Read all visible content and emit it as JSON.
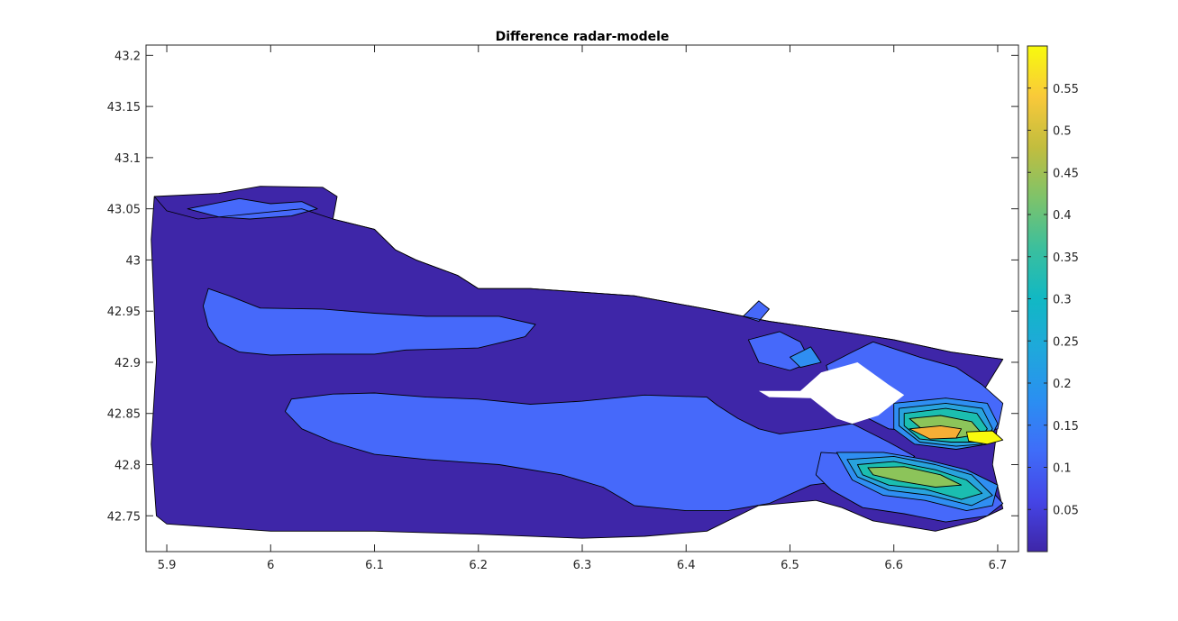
{
  "chart_data": {
    "type": "contour",
    "title": "Difference radar-modele",
    "xlabel": "",
    "ylabel": "",
    "xlim": [
      5.88,
      6.72
    ],
    "ylim": [
      42.715,
      43.21
    ],
    "xticks": [
      5.9,
      6.0,
      6.1,
      6.2,
      6.3,
      6.4,
      6.5,
      6.6,
      6.7
    ],
    "xtick_labels": [
      "5.9",
      "6",
      "6.1",
      "6.2",
      "6.3",
      "6.4",
      "6.5",
      "6.6",
      "6.7"
    ],
    "yticks": [
      42.75,
      42.8,
      42.85,
      42.9,
      42.95,
      43.0,
      43.05,
      43.1,
      43.15,
      43.2
    ],
    "ytick_labels": [
      "42.75",
      "42.8",
      "42.85",
      "42.9",
      "42.95",
      "43",
      "43.05",
      "43.1",
      "43.15",
      "43.2"
    ],
    "colorbar": {
      "colormap": "parula",
      "range": [
        0.0,
        0.6
      ],
      "ticks": [
        0.05,
        0.1,
        0.15,
        0.2,
        0.25,
        0.3,
        0.35,
        0.4,
        0.45,
        0.5,
        0.55
      ],
      "tick_labels": [
        "0.05",
        "0.1",
        "0.15",
        "0.2",
        "0.25",
        "0.3",
        "0.35",
        "0.4",
        "0.45",
        "0.5",
        "0.55"
      ]
    },
    "levels": [
      {
        "value": 0.025,
        "color": "#3e26a8"
      },
      {
        "value": 0.075,
        "color": "#4669fa"
      },
      {
        "value": 0.125,
        "color": "#2f8ef2"
      },
      {
        "value": 0.175,
        "color": "#28a3dd"
      },
      {
        "value": 0.225,
        "color": "#16b6cb"
      },
      {
        "value": 0.275,
        "color": "#1bbeb0"
      },
      {
        "value": 0.325,
        "color": "#55c281"
      },
      {
        "value": 0.375,
        "color": "#8cc45a"
      },
      {
        "value": 0.425,
        "color": "#c5bc3c"
      },
      {
        "value": 0.475,
        "color": "#f6ae36"
      },
      {
        "value": 0.525,
        "color": "#fbd432"
      },
      {
        "value": 0.575,
        "color": "#f8fa0d"
      }
    ],
    "regions": [
      {
        "level": 0.025,
        "points": [
          [
            5.888,
            43.062
          ],
          [
            5.95,
            43.065
          ],
          [
            5.99,
            43.072
          ],
          [
            6.05,
            43.071
          ],
          [
            6.064,
            43.062
          ],
          [
            6.06,
            43.04
          ],
          [
            6.1,
            43.03
          ],
          [
            6.12,
            43.01
          ],
          [
            6.14,
            43.0
          ],
          [
            6.18,
            42.985
          ],
          [
            6.2,
            42.972
          ],
          [
            6.25,
            42.972
          ],
          [
            6.35,
            42.965
          ],
          [
            6.42,
            42.952
          ],
          [
            6.48,
            42.94
          ],
          [
            6.55,
            42.93
          ],
          [
            6.6,
            42.922
          ],
          [
            6.655,
            42.91
          ],
          [
            6.705,
            42.903
          ],
          [
            6.685,
            42.87
          ],
          [
            6.7,
            42.84
          ],
          [
            6.695,
            42.8
          ],
          [
            6.705,
            42.757
          ],
          [
            6.68,
            42.745
          ],
          [
            6.64,
            42.735
          ],
          [
            6.58,
            42.745
          ],
          [
            6.55,
            42.758
          ],
          [
            6.525,
            42.765
          ],
          [
            6.47,
            42.76
          ],
          [
            6.42,
            42.735
          ],
          [
            6.36,
            42.73
          ],
          [
            6.3,
            42.728
          ],
          [
            6.2,
            42.732
          ],
          [
            6.1,
            42.735
          ],
          [
            6.0,
            42.735
          ],
          [
            5.9,
            42.742
          ],
          [
            5.89,
            42.75
          ],
          [
            5.885,
            42.82
          ],
          [
            5.89,
            42.9
          ],
          [
            5.885,
            43.02
          ]
        ]
      },
      {
        "level": 0.075,
        "points": [
          [
            5.94,
            42.972
          ],
          [
            5.96,
            42.965
          ],
          [
            5.99,
            42.953
          ],
          [
            6.05,
            42.952
          ],
          [
            6.1,
            42.948
          ],
          [
            6.15,
            42.945
          ],
          [
            6.22,
            42.945
          ],
          [
            6.255,
            42.937
          ],
          [
            6.245,
            42.925
          ],
          [
            6.2,
            42.914
          ],
          [
            6.13,
            42.912
          ],
          [
            6.1,
            42.908
          ],
          [
            6.05,
            42.908
          ],
          [
            6.0,
            42.907
          ],
          [
            5.97,
            42.91
          ],
          [
            5.95,
            42.92
          ],
          [
            5.94,
            42.935
          ],
          [
            5.935,
            42.955
          ]
        ]
      },
      {
        "level": 0.075,
        "points": [
          [
            5.92,
            43.05
          ],
          [
            5.97,
            43.06
          ],
          [
            6.0,
            43.055
          ],
          [
            6.03,
            43.057
          ],
          [
            6.045,
            43.05
          ],
          [
            6.02,
            43.043
          ],
          [
            5.98,
            43.04
          ],
          [
            5.95,
            43.042
          ]
        ]
      },
      {
        "level": 0.075,
        "points": [
          [
            6.02,
            42.864
          ],
          [
            6.06,
            42.869
          ],
          [
            6.1,
            42.87
          ],
          [
            6.15,
            42.866
          ],
          [
            6.2,
            42.864
          ],
          [
            6.25,
            42.859
          ],
          [
            6.3,
            42.862
          ],
          [
            6.36,
            42.868
          ],
          [
            6.42,
            42.866
          ],
          [
            6.43,
            42.858
          ],
          [
            6.45,
            42.845
          ],
          [
            6.47,
            42.835
          ],
          [
            6.49,
            42.83
          ],
          [
            6.53,
            42.835
          ],
          [
            6.56,
            42.84
          ],
          [
            6.595,
            42.822
          ],
          [
            6.62,
            42.808
          ],
          [
            6.6,
            42.794
          ],
          [
            6.56,
            42.785
          ],
          [
            6.52,
            42.78
          ],
          [
            6.48,
            42.762
          ],
          [
            6.44,
            42.755
          ],
          [
            6.4,
            42.755
          ],
          [
            6.35,
            42.76
          ],
          [
            6.32,
            42.778
          ],
          [
            6.28,
            42.79
          ],
          [
            6.22,
            42.8
          ],
          [
            6.15,
            42.805
          ],
          [
            6.1,
            42.81
          ],
          [
            6.06,
            42.822
          ],
          [
            6.03,
            42.835
          ],
          [
            6.014,
            42.852
          ]
        ]
      },
      {
        "level": 0.075,
        "points": [
          [
            6.58,
            42.92
          ],
          [
            6.625,
            42.905
          ],
          [
            6.66,
            42.895
          ],
          [
            6.685,
            42.878
          ],
          [
            6.705,
            42.86
          ],
          [
            6.7,
            42.835
          ],
          [
            6.66,
            42.828
          ],
          [
            6.63,
            42.832
          ],
          [
            6.595,
            42.835
          ],
          [
            6.57,
            42.848
          ],
          [
            6.56,
            42.863
          ],
          [
            6.54,
            42.878
          ],
          [
            6.535,
            42.897
          ],
          [
            6.56,
            42.91
          ]
        ]
      },
      {
        "level": 0.075,
        "points": [
          [
            6.53,
            42.812
          ],
          [
            6.56,
            42.81
          ],
          [
            6.6,
            42.8
          ],
          [
            6.64,
            42.795
          ],
          [
            6.68,
            42.79
          ],
          [
            6.705,
            42.762
          ],
          [
            6.69,
            42.75
          ],
          [
            6.65,
            42.744
          ],
          [
            6.61,
            42.752
          ],
          [
            6.57,
            42.758
          ],
          [
            6.54,
            42.775
          ],
          [
            6.525,
            42.79
          ]
        ]
      },
      {
        "level": 0.075,
        "points": [
          [
            6.46,
            42.922
          ],
          [
            6.49,
            42.93
          ],
          [
            6.51,
            42.92
          ],
          [
            6.52,
            42.9
          ],
          [
            6.5,
            42.892
          ],
          [
            6.47,
            42.9
          ]
        ]
      },
      {
        "level": 0.075,
        "points": [
          [
            6.455,
            42.945
          ],
          [
            6.47,
            42.96
          ],
          [
            6.48,
            42.952
          ],
          [
            6.47,
            42.94
          ]
        ]
      },
      {
        "level": 0.125,
        "points": [
          [
            6.6,
            42.86
          ],
          [
            6.65,
            42.865
          ],
          [
            6.69,
            42.86
          ],
          [
            6.7,
            42.84
          ],
          [
            6.69,
            42.82
          ],
          [
            6.66,
            42.815
          ],
          [
            6.62,
            42.82
          ],
          [
            6.6,
            42.835
          ]
        ]
      },
      {
        "level": 0.125,
        "points": [
          [
            6.545,
            42.812
          ],
          [
            6.59,
            42.812
          ],
          [
            6.63,
            42.805
          ],
          [
            6.67,
            42.795
          ],
          [
            6.7,
            42.78
          ],
          [
            6.695,
            42.76
          ],
          [
            6.67,
            42.755
          ],
          [
            6.63,
            42.765
          ],
          [
            6.59,
            42.77
          ],
          [
            6.56,
            42.785
          ]
        ]
      },
      {
        "level": 0.125,
        "points": [
          [
            6.5,
            42.905
          ],
          [
            6.52,
            42.915
          ],
          [
            6.53,
            42.9
          ],
          [
            6.51,
            42.895
          ]
        ]
      },
      {
        "level": 0.175,
        "points": [
          [
            6.605,
            42.855
          ],
          [
            6.65,
            42.86
          ],
          [
            6.685,
            42.855
          ],
          [
            6.695,
            42.835
          ],
          [
            6.685,
            42.82
          ],
          [
            6.66,
            42.818
          ],
          [
            6.625,
            42.822
          ],
          [
            6.605,
            42.838
          ]
        ]
      },
      {
        "level": 0.175,
        "points": [
          [
            6.555,
            42.805
          ],
          [
            6.6,
            42.808
          ],
          [
            6.64,
            42.8
          ],
          [
            6.675,
            42.79
          ],
          [
            6.695,
            42.77
          ],
          [
            6.675,
            42.76
          ],
          [
            6.635,
            42.77
          ],
          [
            6.595,
            42.775
          ],
          [
            6.565,
            42.788
          ]
        ]
      },
      {
        "level": 0.275,
        "points": [
          [
            6.61,
            42.85
          ],
          [
            6.65,
            42.855
          ],
          [
            6.68,
            42.85
          ],
          [
            6.69,
            42.835
          ],
          [
            6.68,
            42.822
          ],
          [
            6.655,
            42.822
          ],
          [
            6.625,
            42.825
          ],
          [
            6.61,
            42.838
          ]
        ]
      },
      {
        "level": 0.275,
        "points": [
          [
            6.565,
            42.8
          ],
          [
            6.6,
            42.803
          ],
          [
            6.64,
            42.795
          ],
          [
            6.67,
            42.785
          ],
          [
            6.685,
            42.772
          ],
          [
            6.665,
            42.766
          ],
          [
            6.63,
            42.776
          ],
          [
            6.595,
            42.78
          ],
          [
            6.57,
            42.79
          ]
        ]
      },
      {
        "level": 0.375,
        "points": [
          [
            6.615,
            42.845
          ],
          [
            6.645,
            42.848
          ],
          [
            6.675,
            42.842
          ],
          [
            6.685,
            42.83
          ],
          [
            6.66,
            42.826
          ],
          [
            6.635,
            42.828
          ]
        ]
      },
      {
        "level": 0.375,
        "points": [
          [
            6.575,
            42.797
          ],
          [
            6.61,
            42.798
          ],
          [
            6.645,
            42.79
          ],
          [
            6.665,
            42.78
          ],
          [
            6.64,
            42.778
          ],
          [
            6.605,
            42.784
          ],
          [
            6.58,
            42.79
          ]
        ]
      },
      {
        "level": 0.475,
        "points": [
          [
            6.615,
            42.835
          ],
          [
            6.645,
            42.838
          ],
          [
            6.665,
            42.835
          ],
          [
            6.66,
            42.826
          ],
          [
            6.635,
            42.825
          ]
        ]
      },
      {
        "level": 0.575,
        "points": [
          [
            6.67,
            42.832
          ],
          [
            6.695,
            42.833
          ],
          [
            6.705,
            42.824
          ],
          [
            6.69,
            42.82
          ],
          [
            6.672,
            42.823
          ]
        ]
      }
    ],
    "masks": [
      {
        "points": [
          [
            6.47,
            42.872
          ],
          [
            6.51,
            42.872
          ],
          [
            6.53,
            42.89
          ],
          [
            6.565,
            42.9
          ],
          [
            6.595,
            42.878
          ],
          [
            6.61,
            42.868
          ],
          [
            6.585,
            42.848
          ],
          [
            6.56,
            42.84
          ],
          [
            6.545,
            42.845
          ],
          [
            6.52,
            42.865
          ],
          [
            6.48,
            42.866
          ]
        ]
      }
    ],
    "coastline": [
      [
        5.888,
        43.062
      ],
      [
        5.9,
        43.048
      ],
      [
        5.93,
        43.04
      ],
      [
        5.98,
        43.045
      ],
      [
        6.03,
        43.05
      ],
      [
        6.06,
        43.04
      ],
      [
        6.1,
        43.03
      ],
      [
        6.12,
        43.01
      ],
      [
        6.14,
        43.0
      ],
      [
        6.18,
        42.985
      ],
      [
        6.2,
        42.972
      ],
      [
        6.25,
        42.972
      ],
      [
        6.35,
        42.965
      ],
      [
        6.42,
        42.952
      ],
      [
        6.48,
        42.94
      ],
      [
        6.55,
        42.93
      ],
      [
        6.6,
        42.922
      ],
      [
        6.655,
        42.91
      ],
      [
        6.705,
        42.903
      ]
    ]
  }
}
